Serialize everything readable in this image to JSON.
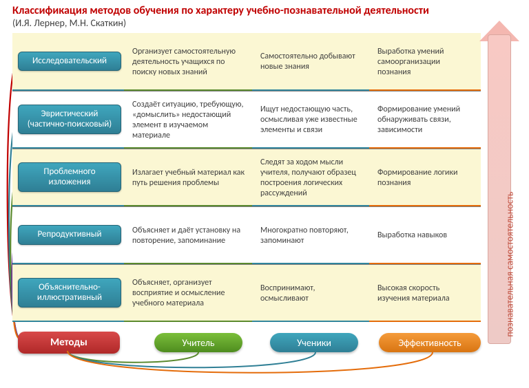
{
  "title": "Классификация методов обучения по характеру учебно-познавательной деятельности",
  "subtitle": "(И.Я. Лернер, М.Н. Скаткин)",
  "arrow_label": "познавательная самостоятельность",
  "colors": {
    "title": "#c00000",
    "method_pill_bg_top": "#3fa6bd",
    "method_pill_bg_bot": "#2f7f95",
    "methods_header_bg_top": "#d84a4a",
    "methods_header_bg_bot": "#b02828",
    "teacher_pill_bg_top": "#7bbf3a",
    "teacher_pill_bg_bot": "#4e8c1f",
    "students_pill_bg_top": "#3fa6bd",
    "students_pill_bg_bot": "#2f7f95",
    "eff_pill_bg_top": "#f59b3a",
    "eff_pill_bg_bot": "#d97512",
    "band_yellow": "#fbf7d3",
    "band_white": "#ffffff",
    "text": "#404040",
    "teacher_line": "#5a8a2e",
    "students_line": "#31859c",
    "eff_line": "#e46c0a",
    "arrow_fill": "#f4b7b0",
    "arrow_text": "#c05040"
  },
  "headers": {
    "methods": "Методы",
    "teacher": "Учитель",
    "students": "Ученики",
    "effectiveness": "Эффективность"
  },
  "rows": [
    {
      "band": "yellow",
      "method": "Исследовательский",
      "teacher": "Организует самостоятельную деятельность учащихся по поиску новых знаний",
      "students": "Самостоятельно добывают новые знания",
      "eff": "Выработка умений самоорганизации познания"
    },
    {
      "band": "white",
      "method": "Эвристический (частично-поисковый)",
      "teacher": "Создаёт ситуацию, требующую, «домыслить» недостающий элемент в изучаемом материале",
      "students": "Ищут недостающую часть, осмысливая уже известные элементы и связи",
      "eff": "Формирование умений обнаруживать связи, зависимости"
    },
    {
      "band": "yellow",
      "method": "Проблемного изложения",
      "teacher": "Излагает учебный материал как путь решения проблемы",
      "students": "Следят за ходом мысли учителя, получают образец построения логических рассуждений",
      "eff": "Формирование логики познания"
    },
    {
      "band": "white",
      "method": "Репродуктивный",
      "teacher": "Объясняет и даёт установку на повторение, запоминание",
      "students": "Многократно повторяют, запоминают",
      "eff": "Выработка навыков"
    },
    {
      "band": "yellow",
      "method": "Объяснительно-иллюстративный",
      "teacher": "Объясняет, организует восприятие и осмысление учебного материала",
      "students": "Воспринимают, осмысливают",
      "eff": "Высокая скорость изучения материала"
    }
  ],
  "connector_colors": [
    "#c00000",
    "#2f7f95",
    "#5a8a2e",
    "#7030a0",
    "#e46c0a"
  ]
}
